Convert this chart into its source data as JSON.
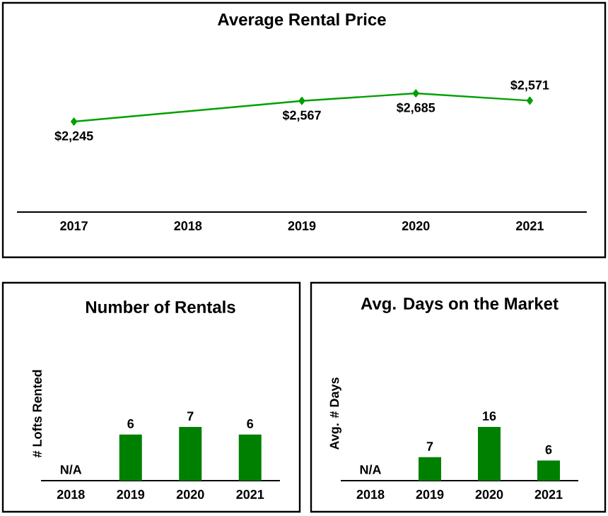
{
  "chart_data": [
    {
      "type": "line",
      "title": "Average Rental Price",
      "categories": [
        "2017",
        "2018",
        "2019",
        "2020",
        "2021"
      ],
      "values": [
        2245,
        null,
        2567,
        2685,
        2571
      ],
      "value_labels": [
        "$2,245",
        null,
        "$2,567",
        "$2,685",
        "$2,571"
      ],
      "color": "#00a000",
      "marker": "diamond"
    },
    {
      "type": "bar",
      "title": "Number of Rentals",
      "ylabel": "# Lofts Rented",
      "categories": [
        "2018",
        "2019",
        "2020",
        "2021"
      ],
      "values": [
        null,
        6,
        7,
        6
      ],
      "value_labels": [
        "N/A",
        "6",
        "7",
        "6"
      ],
      "color": "#008000"
    },
    {
      "type": "bar",
      "title": "Avg. Days on the Market",
      "ylabel": "Avg. # Days",
      "categories": [
        "2018",
        "2019",
        "2020",
        "2021"
      ],
      "values": [
        null,
        7,
        16,
        6
      ],
      "value_labels": [
        "N/A",
        "7",
        "16",
        "6"
      ],
      "color": "#008000"
    }
  ]
}
